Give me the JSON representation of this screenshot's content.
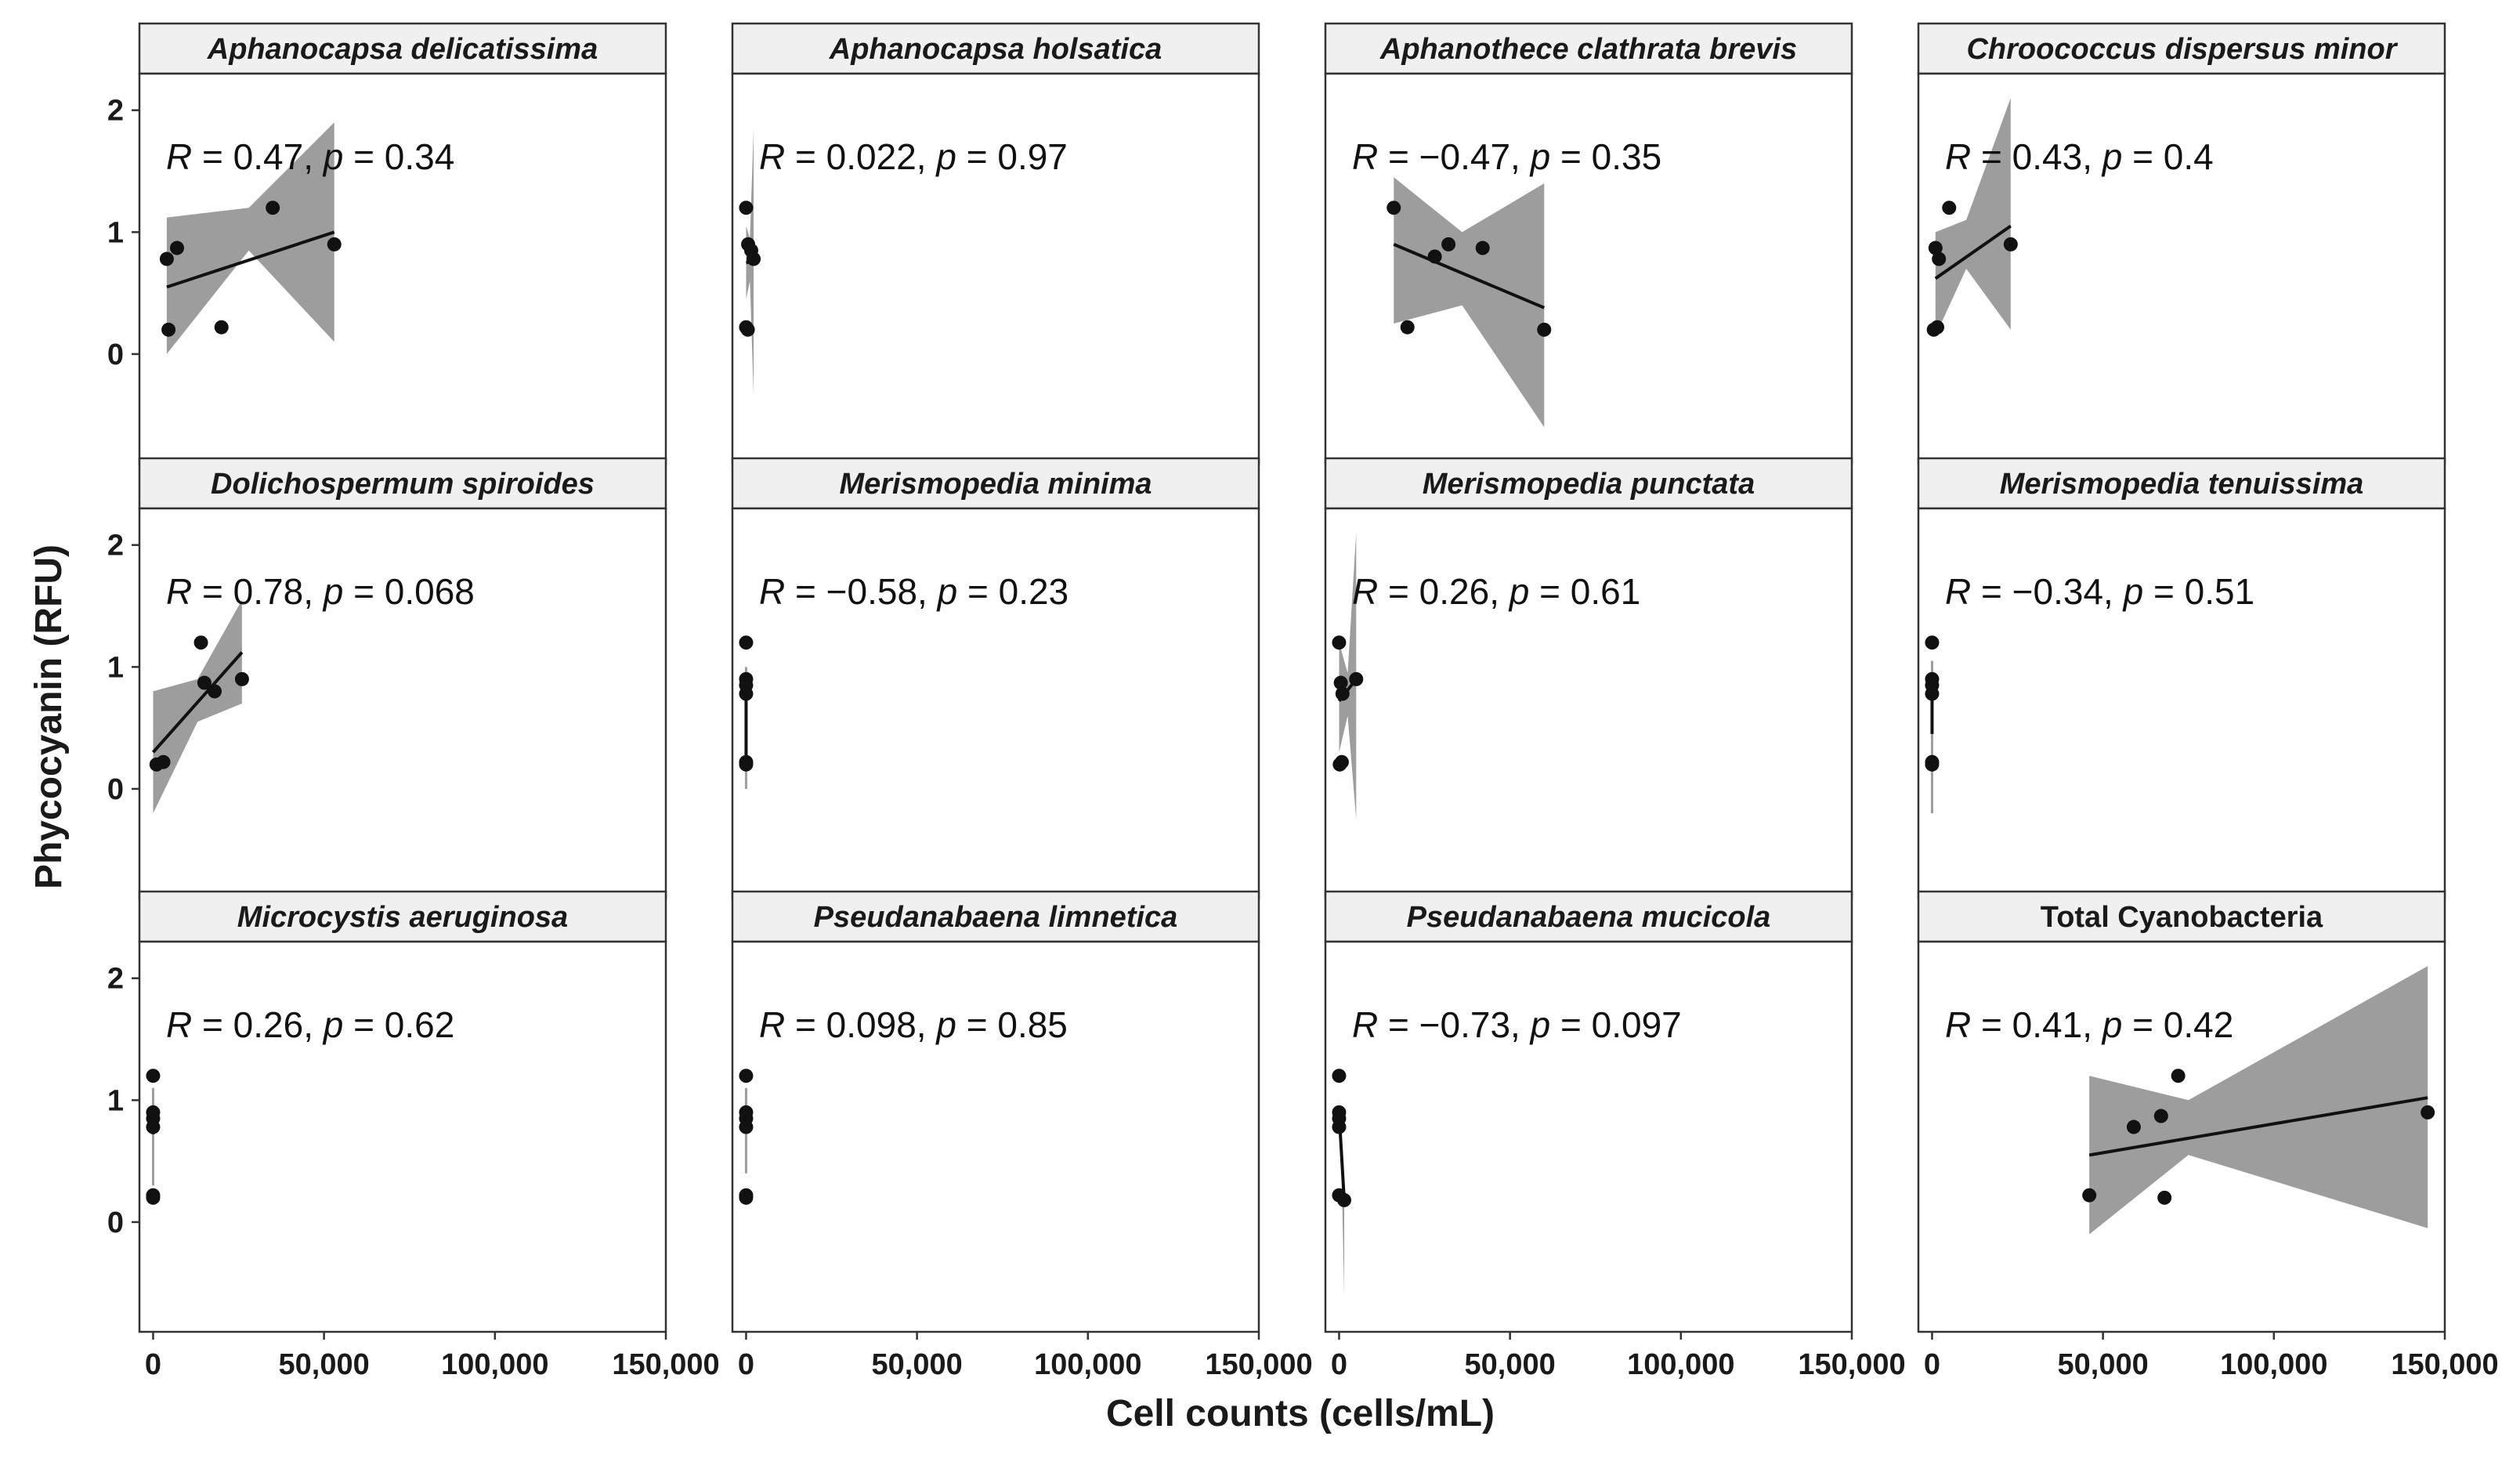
{
  "chart_data": {
    "type": "scatter",
    "xlabel": "Cell counts (cells/mL)",
    "ylabel": "Phycocyanin (RFU)",
    "xlim": [
      -4000,
      150000
    ],
    "ylim": [
      -0.9,
      2.3
    ],
    "x_ticks": [
      0,
      50000,
      100000,
      150000
    ],
    "x_tick_labels": [
      "0",
      "50,000",
      "100,000",
      "150,000"
    ],
    "y_ticks": [
      0,
      1,
      2
    ],
    "y_tick_labels": [
      "0",
      "1",
      "2"
    ],
    "stat_labels": {
      "r": "R",
      "p": "p"
    },
    "grid": false,
    "panels": [
      {
        "title": "Aphanocapsa delicatissima",
        "italic": true,
        "r": "0.47",
        "p": "0.34",
        "points": [
          [
            4000,
            0.78
          ],
          [
            7000,
            0.87
          ],
          [
            4500,
            0.2
          ],
          [
            20000,
            0.22
          ],
          [
            35000,
            1.2
          ],
          [
            53000,
            0.9
          ]
        ],
        "fit": [
          [
            4000,
            0.55
          ],
          [
            53000,
            1.0
          ]
        ],
        "band_upper": [
          [
            4000,
            1.12
          ],
          [
            28000,
            1.2
          ],
          [
            53000,
            1.9
          ]
        ],
        "band_lower": [
          [
            4000,
            0.0
          ],
          [
            28000,
            0.85
          ],
          [
            53000,
            0.1
          ]
        ]
      },
      {
        "title": "Aphanocapsa holsatica",
        "italic": true,
        "r": "0.022",
        "p": "0.97",
        "points": [
          [
            0,
            1.2
          ],
          [
            600,
            0.9
          ],
          [
            1500,
            0.85
          ],
          [
            2200,
            0.78
          ],
          [
            0,
            0.22
          ],
          [
            500,
            0.2
          ]
        ],
        "fit": [
          [
            0,
            0.75
          ],
          [
            2200,
            0.76
          ]
        ],
        "band_upper": [
          [
            0,
            1.05
          ],
          [
            1100,
            0.95
          ],
          [
            2200,
            1.85
          ]
        ],
        "band_lower": [
          [
            0,
            0.45
          ],
          [
            1100,
            0.6
          ],
          [
            2200,
            -0.35
          ]
        ]
      },
      {
        "title": "Aphanothece clathrata brevis",
        "italic": true,
        "r": "−0.47",
        "p": "0.35",
        "points": [
          [
            16000,
            1.2
          ],
          [
            20000,
            0.22
          ],
          [
            28000,
            0.8
          ],
          [
            32000,
            0.9
          ],
          [
            42000,
            0.87
          ],
          [
            60000,
            0.2
          ]
        ],
        "fit": [
          [
            16000,
            0.9
          ],
          [
            60000,
            0.38
          ]
        ],
        "band_upper": [
          [
            16000,
            1.45
          ],
          [
            36000,
            1.0
          ],
          [
            60000,
            1.4
          ]
        ],
        "band_lower": [
          [
            16000,
            0.25
          ],
          [
            36000,
            0.4
          ],
          [
            60000,
            -0.6
          ]
        ]
      },
      {
        "title": "Chroococcus dispersus minor",
        "italic": true,
        "r": "0.43",
        "p": "0.4",
        "points": [
          [
            1000,
            0.87
          ],
          [
            2000,
            0.78
          ],
          [
            5000,
            1.2
          ],
          [
            500,
            0.2
          ],
          [
            1500,
            0.22
          ],
          [
            23000,
            0.9
          ]
        ],
        "fit": [
          [
            1000,
            0.62
          ],
          [
            23000,
            1.05
          ]
        ],
        "band_upper": [
          [
            1000,
            1.0
          ],
          [
            10000,
            1.1
          ],
          [
            23000,
            2.1
          ]
        ],
        "band_lower": [
          [
            1000,
            0.15
          ],
          [
            10000,
            0.7
          ],
          [
            23000,
            0.2
          ]
        ]
      },
      {
        "title": "Dolichospermum spiroides",
        "italic": true,
        "r": "0.78",
        "p": "0.068",
        "points": [
          [
            1000,
            0.2
          ],
          [
            3000,
            0.22
          ],
          [
            14000,
            1.2
          ],
          [
            15000,
            0.87
          ],
          [
            18000,
            0.8
          ],
          [
            26000,
            0.9
          ]
        ],
        "fit": [
          [
            0,
            0.3
          ],
          [
            26000,
            1.12
          ]
        ],
        "band_upper": [
          [
            0,
            0.8
          ],
          [
            13000,
            0.9
          ],
          [
            26000,
            1.55
          ]
        ],
        "band_lower": [
          [
            0,
            -0.2
          ],
          [
            13000,
            0.55
          ],
          [
            26000,
            0.7
          ]
        ]
      },
      {
        "title": "Merismopedia minima",
        "italic": true,
        "r": "−0.58",
        "p": "0.23",
        "points": [
          [
            0,
            1.2
          ],
          [
            0,
            0.9
          ],
          [
            0,
            0.85
          ],
          [
            0,
            0.78
          ],
          [
            0,
            0.22
          ],
          [
            0,
            0.2
          ]
        ],
        "fit": [
          [
            0,
            0.95
          ],
          [
            0,
            0.2
          ]
        ],
        "band_upper": [
          [
            0,
            1.0
          ],
          [
            0,
            0.8
          ],
          [
            0,
            0.4
          ]
        ],
        "band_lower": [
          [
            0,
            0.6
          ],
          [
            0,
            0.6
          ],
          [
            0,
            0.0
          ]
        ]
      },
      {
        "title": "Merismopedia punctata",
        "italic": true,
        "r": "0.26",
        "p": "0.61",
        "points": [
          [
            0,
            1.2
          ],
          [
            500,
            0.87
          ],
          [
            1000,
            0.78
          ],
          [
            5000,
            0.9
          ],
          [
            200,
            0.2
          ],
          [
            800,
            0.22
          ]
        ],
        "fit": [
          [
            0,
            0.72
          ],
          [
            5000,
            0.9
          ]
        ],
        "band_upper": [
          [
            0,
            1.2
          ],
          [
            2500,
            0.95
          ],
          [
            5000,
            2.1
          ]
        ],
        "band_lower": [
          [
            0,
            0.3
          ],
          [
            2500,
            0.6
          ],
          [
            5000,
            -0.25
          ]
        ]
      },
      {
        "title": "Merismopedia tenuissima",
        "italic": true,
        "r": "−0.34",
        "p": "0.51",
        "points": [
          [
            0,
            1.2
          ],
          [
            0,
            0.9
          ],
          [
            0,
            0.85
          ],
          [
            0,
            0.78
          ],
          [
            0,
            0.22
          ],
          [
            0,
            0.2
          ]
        ],
        "fit": [
          [
            0,
            0.9
          ],
          [
            0,
            0.45
          ]
        ],
        "band_upper": [
          [
            0,
            1.05
          ],
          [
            0,
            0.8
          ],
          [
            0,
            0.6
          ]
        ],
        "band_lower": [
          [
            0,
            0.55
          ],
          [
            0,
            0.5
          ],
          [
            0,
            -0.2
          ]
        ]
      },
      {
        "title": "Microcystis aeruginosa",
        "italic": true,
        "r": "0.26",
        "p": "0.62",
        "points": [
          [
            0,
            1.2
          ],
          [
            0,
            0.9
          ],
          [
            0,
            0.85
          ],
          [
            0,
            0.78
          ],
          [
            0,
            0.22
          ],
          [
            0,
            0.2
          ]
        ],
        "fit": [
          [
            0,
            0.72
          ],
          [
            0,
            0.9
          ]
        ],
        "band_upper": [
          [
            0,
            0.9
          ],
          [
            0,
            0.95
          ],
          [
            0,
            1.1
          ]
        ],
        "band_lower": [
          [
            0,
            0.5
          ],
          [
            0,
            0.55
          ],
          [
            0,
            0.3
          ]
        ]
      },
      {
        "title": "Pseudanabaena limnetica",
        "italic": true,
        "r": "0.098",
        "p": "0.85",
        "points": [
          [
            0,
            1.2
          ],
          [
            0,
            0.9
          ],
          [
            0,
            0.85
          ],
          [
            0,
            0.78
          ],
          [
            0,
            0.22
          ],
          [
            0,
            0.2
          ]
        ],
        "fit": [
          [
            0,
            0.75
          ],
          [
            0,
            0.8
          ]
        ],
        "band_upper": [
          [
            0,
            0.95
          ],
          [
            0,
            0.9
          ],
          [
            0,
            1.1
          ]
        ],
        "band_lower": [
          [
            0,
            0.5
          ],
          [
            0,
            0.6
          ],
          [
            0,
            0.4
          ]
        ]
      },
      {
        "title": "Pseudanabaena mucicola",
        "italic": true,
        "r": "−0.73",
        "p": "0.097",
        "points": [
          [
            0,
            1.2
          ],
          [
            0,
            0.9
          ],
          [
            0,
            0.85
          ],
          [
            0,
            0.78
          ],
          [
            0,
            0.22
          ],
          [
            1500,
            0.18
          ]
        ],
        "fit": [
          [
            0,
            0.9
          ],
          [
            1500,
            0.18
          ]
        ],
        "band_upper": [
          [
            0,
            1.0
          ],
          [
            750,
            0.6
          ],
          [
            1500,
            0.4
          ]
        ],
        "band_lower": [
          [
            0,
            0.75
          ],
          [
            750,
            0.4
          ],
          [
            1500,
            -0.6
          ]
        ]
      },
      {
        "title": "Total Cyanobacteria",
        "italic": false,
        "r": "0.41",
        "p": "0.42",
        "points": [
          [
            46000,
            0.22
          ],
          [
            59000,
            0.78
          ],
          [
            67000,
            0.87
          ],
          [
            68000,
            0.2
          ],
          [
            72000,
            1.2
          ],
          [
            145000,
            0.9
          ]
        ],
        "fit": [
          [
            46000,
            0.55
          ],
          [
            145000,
            1.02
          ]
        ],
        "band_upper": [
          [
            46000,
            1.2
          ],
          [
            75000,
            1.0
          ],
          [
            145000,
            2.1
          ]
        ],
        "band_lower": [
          [
            46000,
            -0.1
          ],
          [
            75000,
            0.55
          ],
          [
            145000,
            -0.05
          ]
        ]
      }
    ]
  }
}
